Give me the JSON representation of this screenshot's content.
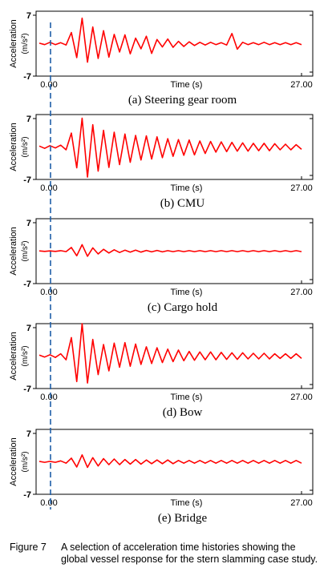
{
  "figure": {
    "label": "Figure 7",
    "caption": "A selection of acceleration time histories showing the global vessel response for the stern slamming case study."
  },
  "colors": {
    "signal": "#ff0000",
    "marker_line": "#1f5fa8",
    "axis": "#000000"
  },
  "chart_data": [
    {
      "type": "line",
      "panel_label": "(a) Steering gear room",
      "xlabel": "Time (s)",
      "ylabel": "Acceleration",
      "yunit": "(m/s²)",
      "xlim": [
        0,
        27
      ],
      "ylim": [
        -7,
        7
      ],
      "x_tick_labels": [
        "0.00",
        "27.00"
      ],
      "y_tick_labels": [
        "7",
        "-7"
      ],
      "marker_x": 0.0,
      "grid": false,
      "series": [
        {
          "values": [
            0.1,
            -0.2,
            0.3,
            -0.2,
            0.2,
            -0.3,
            2.4,
            -3.0,
            5.5,
            -4.0,
            3.6,
            -3.2,
            2.8,
            -2.9,
            2.0,
            -1.8,
            1.9,
            -2.2,
            1.2,
            -1.1,
            1.6,
            -2.1,
            0.9,
            -0.7,
            1.0,
            -0.8,
            0.5,
            -0.6,
            0.4,
            -0.4,
            0.3,
            -0.3,
            0.3,
            -0.2,
            0.2,
            -0.3,
            2.2,
            -1.2,
            0.3,
            -0.2,
            0.2,
            -0.2,
            0.3,
            -0.2,
            0.2,
            -0.2,
            0.2,
            -0.2,
            0.2,
            -0.2
          ]
        }
      ]
    },
    {
      "type": "line",
      "panel_label": "(b) CMU",
      "xlabel": "Time (s)",
      "ylabel": "Acceleration",
      "yunit": "(m/s²)",
      "xlim": [
        0,
        27
      ],
      "ylim": [
        -7,
        7
      ],
      "x_tick_labels": [
        "0.00",
        "27.00"
      ],
      "y_tick_labels": [
        "7",
        "-7"
      ],
      "marker_x": 0.0,
      "grid": false,
      "series": [
        {
          "values": [
            0.2,
            -0.3,
            0.3,
            -0.2,
            0.4,
            -0.6,
            3.0,
            -4.5,
            6.2,
            -6.5,
            4.8,
            -5.2,
            3.6,
            -4.4,
            3.2,
            -3.8,
            2.8,
            -3.3,
            2.5,
            -2.8,
            2.4,
            -2.6,
            2.2,
            -2.3,
            1.8,
            -2.0,
            1.6,
            -1.8,
            1.5,
            -1.7,
            1.3,
            -1.4,
            1.2,
            -1.1,
            1.1,
            -1.0,
            1.0,
            -0.9,
            0.9,
            -0.9,
            0.8,
            -0.8,
            0.8,
            -0.8,
            0.7,
            -0.6,
            0.6,
            -0.6,
            0.5,
            -0.5
          ]
        }
      ]
    },
    {
      "type": "line",
      "panel_label": "(c) Cargo hold",
      "xlabel": "Time (s)",
      "ylabel": "Acceleration",
      "yunit": "(m/s²)",
      "xlim": [
        0,
        27
      ],
      "ylim": [
        -7,
        7
      ],
      "x_tick_labels": [
        "0.00",
        "27.00"
      ],
      "y_tick_labels": [
        "7",
        "-7"
      ],
      "marker_x": 0.0,
      "grid": false,
      "series": [
        {
          "values": [
            0.05,
            -0.05,
            0.05,
            -0.05,
            0.1,
            -0.1,
            0.8,
            -1.0,
            1.4,
            -1.1,
            0.7,
            -0.6,
            0.4,
            -0.4,
            0.3,
            -0.3,
            0.2,
            -0.2,
            0.2,
            -0.2,
            0.15,
            -0.15,
            0.15,
            -0.15,
            0.1,
            -0.1,
            0.1,
            -0.1,
            0.1,
            -0.1,
            0.1,
            -0.1,
            0.1,
            -0.1,
            0.1,
            -0.1,
            0.1,
            -0.1,
            0.1,
            -0.1,
            0.1,
            -0.1,
            0.1,
            -0.1,
            0.1,
            -0.1,
            0.1,
            -0.1,
            0.1,
            -0.1
          ]
        }
      ]
    },
    {
      "type": "line",
      "panel_label": "(d) Bow",
      "xlabel": "Time (s)",
      "ylabel": "Acceleration",
      "yunit": "(m/s²)",
      "xlim": [
        0,
        27
      ],
      "ylim": [
        -7,
        7
      ],
      "x_tick_labels": [
        "0.00",
        "27.00"
      ],
      "y_tick_labels": [
        "7",
        "-7"
      ],
      "marker_x": 0.0,
      "grid": false,
      "series": [
        {
          "values": [
            0.2,
            -0.2,
            0.3,
            -0.3,
            0.5,
            -0.8,
            4.0,
            -5.5,
            7.0,
            -5.8,
            3.6,
            -4.0,
            2.5,
            -3.2,
            2.8,
            -2.4,
            2.9,
            -2.2,
            2.6,
            -1.8,
            2.0,
            -1.6,
            1.8,
            -1.4,
            1.5,
            -1.2,
            1.3,
            -1.0,
            1.0,
            -0.9,
            0.9,
            -0.8,
            0.9,
            -0.8,
            0.8,
            -0.7,
            0.7,
            -0.7,
            0.7,
            -0.6,
            0.6,
            -0.6,
            0.6,
            -0.6,
            0.5,
            -0.5,
            0.5,
            -0.5,
            0.5,
            -0.5
          ]
        }
      ]
    },
    {
      "type": "line",
      "panel_label": "(e) Bridge",
      "xlabel": "Time (s)",
      "ylabel": "Acceleration",
      "yunit": "(m/s²)",
      "xlim": [
        0,
        27
      ],
      "ylim": [
        -7,
        7
      ],
      "x_tick_labels": [
        "0.00",
        "27.00"
      ],
      "y_tick_labels": [
        "7",
        "-7"
      ],
      "marker_x": 0.0,
      "grid": false,
      "series": [
        {
          "values": [
            0.1,
            -0.1,
            0.1,
            -0.1,
            0.2,
            -0.3,
            0.8,
            -1.1,
            1.5,
            -1.2,
            0.9,
            -0.9,
            0.7,
            -0.6,
            0.6,
            -0.6,
            0.5,
            -0.5,
            0.5,
            -0.5,
            0.4,
            -0.4,
            0.4,
            -0.4,
            0.4,
            -0.4,
            0.3,
            -0.3,
            0.3,
            -0.3,
            0.3,
            -0.3,
            0.3,
            -0.3,
            0.3,
            -0.3,
            0.3,
            -0.3,
            0.3,
            -0.3,
            0.3,
            -0.3,
            0.3,
            -0.3,
            0.3,
            -0.3,
            0.3,
            -0.3,
            0.3,
            -0.3
          ]
        }
      ]
    }
  ]
}
